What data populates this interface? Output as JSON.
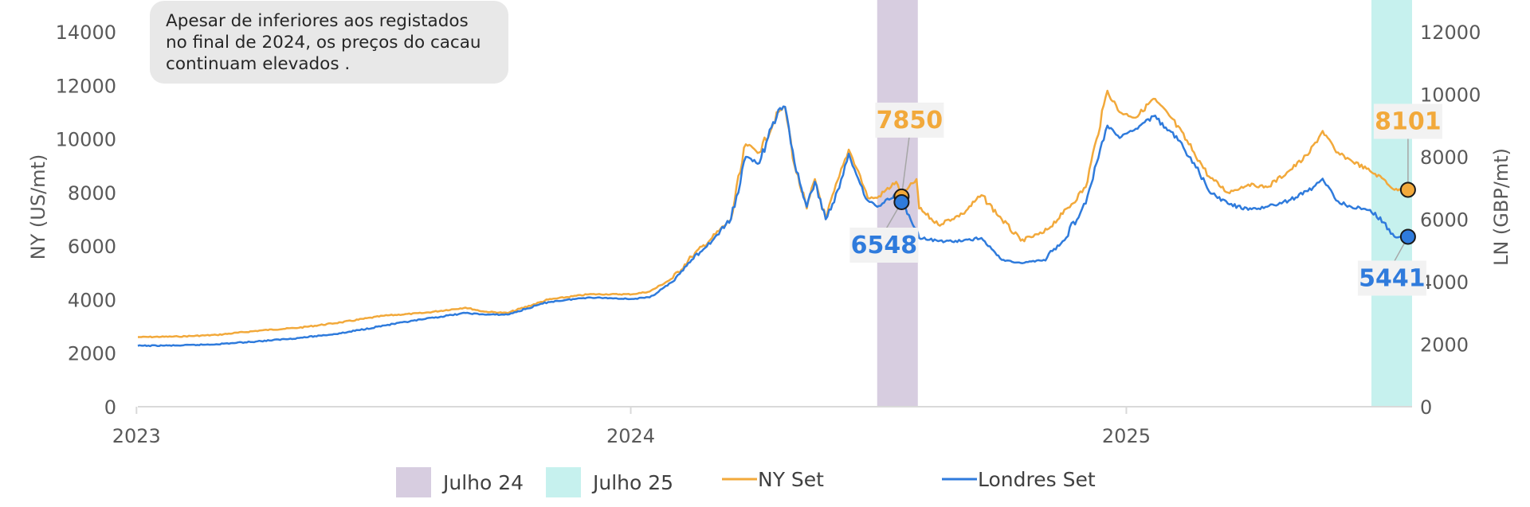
{
  "annotation": {
    "lines": [
      "Apesar de inferiores aos registados",
      "no final de 2024, os preços do cacau",
      "continuam elevados ."
    ]
  },
  "legend": {
    "bands": [
      {
        "label": "Julho 24",
        "color": "#d7cde0"
      },
      {
        "label": "Julho 25",
        "color": "#c6f1ee"
      }
    ],
    "series": [
      {
        "label": "NY Set",
        "color": "#f2a93b"
      },
      {
        "label": "Londres Set",
        "color": "#2f7bdc"
      }
    ]
  },
  "chart_data": {
    "type": "line",
    "x_range": [
      "2023-01-02",
      "2025-07-31"
    ],
    "x_ticks": [
      "2023",
      "2024",
      "2025"
    ],
    "left_axis": {
      "title": "NY (US/mt)",
      "range": [
        0,
        14000
      ],
      "ticks": [
        "0",
        "2000",
        "4000",
        "6000",
        "8000",
        "10000",
        "12000",
        "14000"
      ]
    },
    "right_axis": {
      "title": "LN (GBP/mt)",
      "range": [
        0,
        12000
      ],
      "ticks": [
        "0",
        "2000",
        "4000",
        "6000",
        "8000",
        "10000",
        "12000"
      ]
    },
    "shaded_periods": [
      {
        "label": "Julho 24",
        "start": "2024-07-01",
        "end": "2024-07-31"
      },
      {
        "label": "Julho 25",
        "start": "2025-07-01",
        "end": "2025-07-31"
      }
    ],
    "series": [
      {
        "name": "NY Set",
        "axis": "left",
        "color": "#f2a93b",
        "points": [
          [
            "2023-01-02",
            2600
          ],
          [
            "2023-02-01",
            2620
          ],
          [
            "2023-03-01",
            2680
          ],
          [
            "2023-04-03",
            2850
          ],
          [
            "2023-05-01",
            2950
          ],
          [
            "2023-06-01",
            3150
          ],
          [
            "2023-07-03",
            3400
          ],
          [
            "2023-08-01",
            3500
          ],
          [
            "2023-09-01",
            3700
          ],
          [
            "2023-09-15",
            3550
          ],
          [
            "2023-10-02",
            3500
          ],
          [
            "2023-11-01",
            4000
          ],
          [
            "2023-12-01",
            4200
          ],
          [
            "2024-01-02",
            4200
          ],
          [
            "2024-01-15",
            4300
          ],
          [
            "2024-02-01",
            4800
          ],
          [
            "2024-02-15",
            5600
          ],
          [
            "2024-03-01",
            6300
          ],
          [
            "2024-03-15",
            7000
          ],
          [
            "2024-03-26",
            9800
          ],
          [
            "2024-04-05",
            9500
          ],
          [
            "2024-04-19",
            11000
          ],
          [
            "2024-04-24",
            11200
          ],
          [
            "2024-05-01",
            9000
          ],
          [
            "2024-05-10",
            7400
          ],
          [
            "2024-05-16",
            8500
          ],
          [
            "2024-05-24",
            7000
          ],
          [
            "2024-06-03",
            8600
          ],
          [
            "2024-06-10",
            9600
          ],
          [
            "2024-06-17",
            8800
          ],
          [
            "2024-06-24",
            7800
          ],
          [
            "2024-07-01",
            7800
          ],
          [
            "2024-07-15",
            8400
          ],
          [
            "2024-07-19",
            7850
          ],
          [
            "2024-07-30",
            8500
          ],
          [
            "2024-08-01",
            7400
          ],
          [
            "2024-08-15",
            6800
          ],
          [
            "2024-09-02",
            7200
          ],
          [
            "2024-09-16",
            7900
          ],
          [
            "2024-10-01",
            7000
          ],
          [
            "2024-10-15",
            6200
          ],
          [
            "2024-11-01",
            6500
          ],
          [
            "2024-11-15",
            7200
          ],
          [
            "2024-12-02",
            8200
          ],
          [
            "2024-12-10",
            10000
          ],
          [
            "2024-12-18",
            11800
          ],
          [
            "2024-12-27",
            11000
          ],
          [
            "2025-01-08",
            10800
          ],
          [
            "2025-01-21",
            11500
          ],
          [
            "2025-02-03",
            10800
          ],
          [
            "2025-02-20",
            9500
          ],
          [
            "2025-03-03",
            8600
          ],
          [
            "2025-03-17",
            8000
          ],
          [
            "2025-04-01",
            8300
          ],
          [
            "2025-04-15",
            8200
          ],
          [
            "2025-05-01",
            8800
          ],
          [
            "2025-05-15",
            9400
          ],
          [
            "2025-05-26",
            10300
          ],
          [
            "2025-06-05",
            9500
          ],
          [
            "2025-06-16",
            9200
          ],
          [
            "2025-06-30",
            8800
          ],
          [
            "2025-07-10",
            8500
          ],
          [
            "2025-07-18",
            8101
          ],
          [
            "2025-07-28",
            8101
          ]
        ]
      },
      {
        "name": "Londres Set",
        "axis": "right",
        "color": "#2f7bdc",
        "points": [
          [
            "2023-01-02",
            1950
          ],
          [
            "2023-02-01",
            1960
          ],
          [
            "2023-03-01",
            2000
          ],
          [
            "2023-04-03",
            2100
          ],
          [
            "2023-05-01",
            2200
          ],
          [
            "2023-06-01",
            2350
          ],
          [
            "2023-07-03",
            2600
          ],
          [
            "2023-08-01",
            2800
          ],
          [
            "2023-09-01",
            3000
          ],
          [
            "2023-09-15",
            2950
          ],
          [
            "2023-10-02",
            2950
          ],
          [
            "2023-11-01",
            3350
          ],
          [
            "2023-12-01",
            3500
          ],
          [
            "2024-01-02",
            3450
          ],
          [
            "2024-01-15",
            3500
          ],
          [
            "2024-02-01",
            4000
          ],
          [
            "2024-02-15",
            4700
          ],
          [
            "2024-03-01",
            5300
          ],
          [
            "2024-03-15",
            6000
          ],
          [
            "2024-03-26",
            8000
          ],
          [
            "2024-04-05",
            7800
          ],
          [
            "2024-04-19",
            9500
          ],
          [
            "2024-04-24",
            9600
          ],
          [
            "2024-05-01",
            7800
          ],
          [
            "2024-05-10",
            6400
          ],
          [
            "2024-05-16",
            7200
          ],
          [
            "2024-05-24",
            6000
          ],
          [
            "2024-06-03",
            7000
          ],
          [
            "2024-06-10",
            8100
          ],
          [
            "2024-06-17",
            7300
          ],
          [
            "2024-06-24",
            6600
          ],
          [
            "2024-07-01",
            6400
          ],
          [
            "2024-07-15",
            6800
          ],
          [
            "2024-07-19",
            6548
          ],
          [
            "2024-07-30",
            5700
          ],
          [
            "2024-08-01",
            5400
          ],
          [
            "2024-08-15",
            5300
          ],
          [
            "2024-09-02",
            5300
          ],
          [
            "2024-09-16",
            5400
          ],
          [
            "2024-10-01",
            4700
          ],
          [
            "2024-10-15",
            4600
          ],
          [
            "2024-11-01",
            4700
          ],
          [
            "2024-11-15",
            5300
          ],
          [
            "2024-12-02",
            6500
          ],
          [
            "2024-12-10",
            7800
          ],
          [
            "2024-12-18",
            9000
          ],
          [
            "2024-12-27",
            8600
          ],
          [
            "2025-01-08",
            8900
          ],
          [
            "2025-01-21",
            9300
          ],
          [
            "2025-02-03",
            8800
          ],
          [
            "2025-02-20",
            7800
          ],
          [
            "2025-03-03",
            6900
          ],
          [
            "2025-03-17",
            6500
          ],
          [
            "2025-04-01",
            6300
          ],
          [
            "2025-04-15",
            6400
          ],
          [
            "2025-05-01",
            6600
          ],
          [
            "2025-05-15",
            6900
          ],
          [
            "2025-05-26",
            7300
          ],
          [
            "2025-06-05",
            6600
          ],
          [
            "2025-06-16",
            6400
          ],
          [
            "2025-06-30",
            6300
          ],
          [
            "2025-07-10",
            5900
          ],
          [
            "2025-07-18",
            5441
          ],
          [
            "2025-07-28",
            5441
          ]
        ]
      }
    ],
    "callouts": [
      {
        "series": "NY Set",
        "date": "2024-07-19",
        "value": 7850,
        "label": "7850"
      },
      {
        "series": "Londres Set",
        "date": "2024-07-19",
        "value": 6548,
        "label": "6548"
      },
      {
        "series": "NY Set",
        "date": "2025-07-28",
        "value": 8101,
        "label": "8101"
      },
      {
        "series": "Londres Set",
        "date": "2025-07-28",
        "value": 5441,
        "label": "5441"
      }
    ]
  }
}
